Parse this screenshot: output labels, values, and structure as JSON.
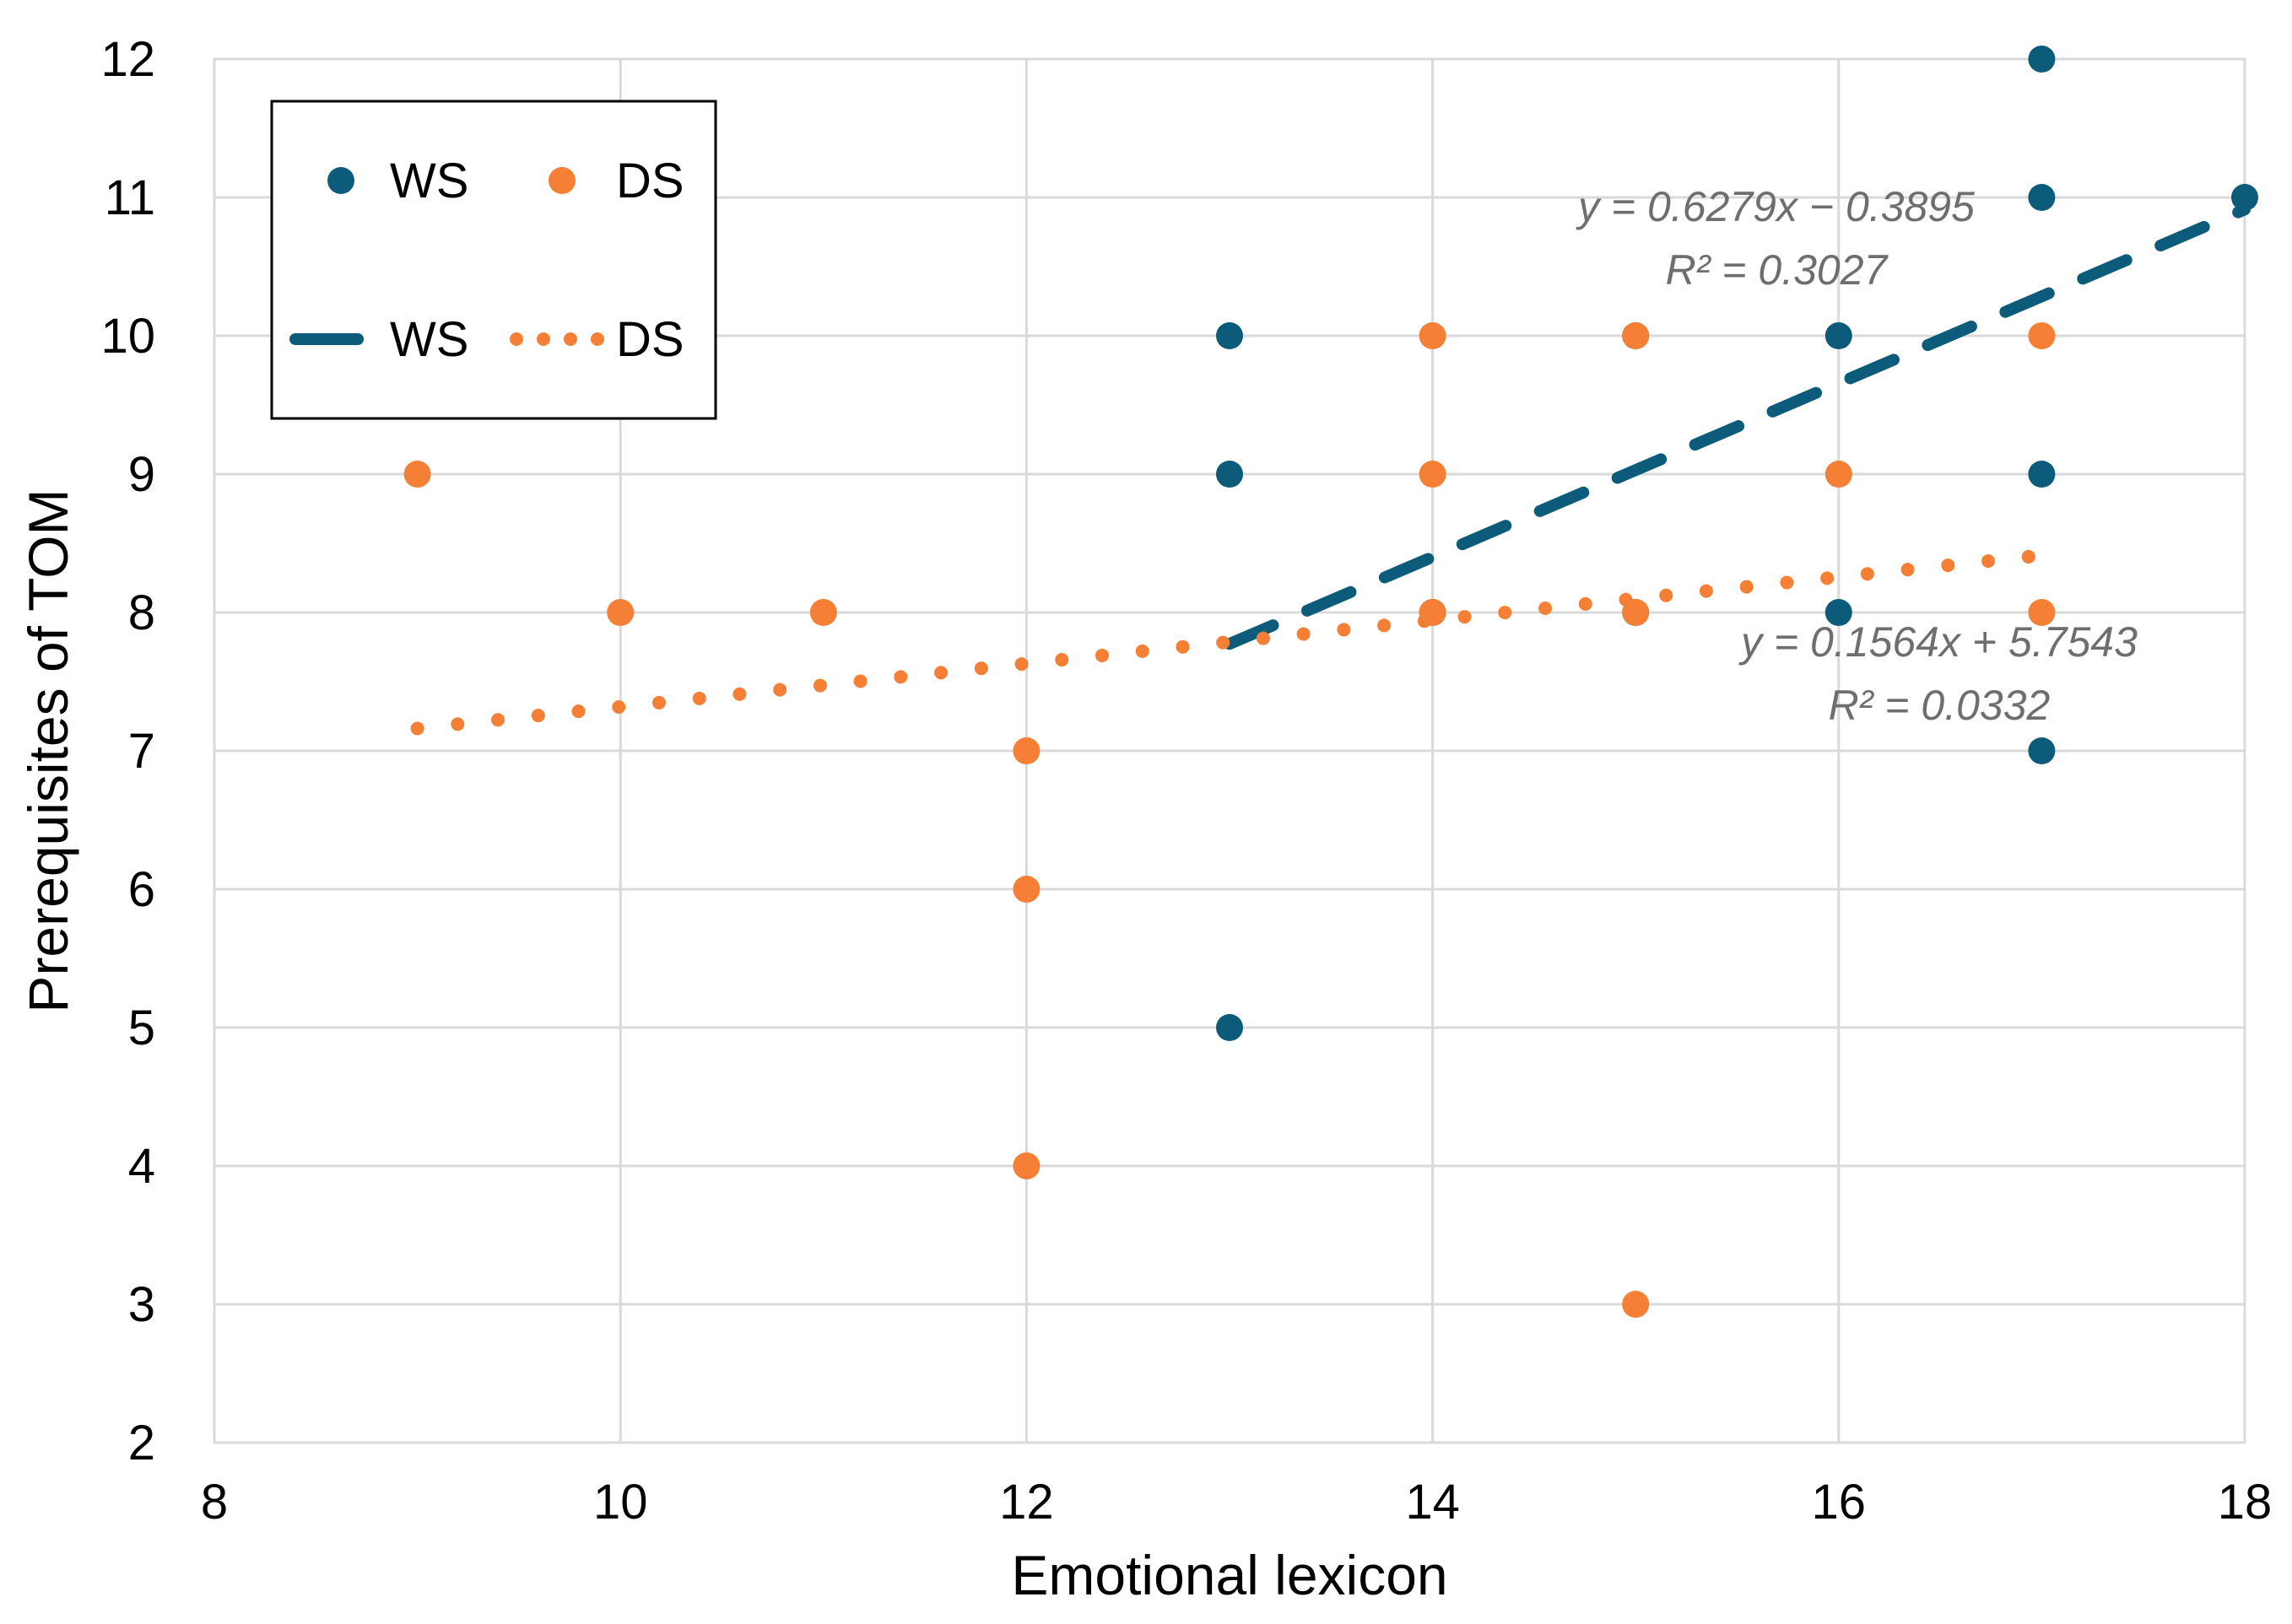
{
  "chart_data": {
    "type": "scatter",
    "title": "",
    "xlabel": "Emotional lexicon",
    "ylabel": "Prerequisites of TOM",
    "xlim": [
      8,
      18
    ],
    "ylim": [
      2,
      12
    ],
    "x_ticks": [
      "8",
      "10",
      "12",
      "14",
      "16",
      "18"
    ],
    "y_ticks": [
      "2",
      "3",
      "4",
      "5",
      "6",
      "7",
      "8",
      "9",
      "10",
      "11",
      "12"
    ],
    "grid": true,
    "colors": {
      "WS": "#0d5b7a",
      "DS": "#f47f35"
    },
    "series": [
      {
        "name": "WS",
        "points": [
          [
            13,
            10
          ],
          [
            13,
            9
          ],
          [
            13,
            5
          ],
          [
            14,
            8
          ],
          [
            15,
            10
          ],
          [
            15,
            8
          ],
          [
            16,
            10
          ],
          [
            16,
            8
          ],
          [
            17,
            12
          ],
          [
            17,
            11
          ],
          [
            17,
            9
          ],
          [
            17,
            7
          ],
          [
            18,
            11
          ]
        ]
      },
      {
        "name": "DS",
        "points": [
          [
            9,
            9
          ],
          [
            10,
            8
          ],
          [
            11,
            8
          ],
          [
            12,
            7
          ],
          [
            12,
            6
          ],
          [
            12,
            4
          ],
          [
            14,
            10
          ],
          [
            14,
            9
          ],
          [
            14,
            8
          ],
          [
            15,
            10
          ],
          [
            15,
            8
          ],
          [
            15,
            3
          ],
          [
            16,
            9
          ],
          [
            17,
            10
          ],
          [
            17,
            8
          ]
        ]
      }
    ],
    "trendlines": [
      {
        "name": "WS",
        "slope": 0.6279,
        "intercept": -0.3895,
        "x_range": [
          13,
          18
        ],
        "style": "dashed",
        "equation": "y = 0.6279x − 0.3895",
        "r2": "R² = 0.3027"
      },
      {
        "name": "DS",
        "slope": 0.1564,
        "intercept": 5.7543,
        "x_range": [
          9,
          17
        ],
        "style": "dotted",
        "equation": "y = 0.1564x + 5.7543",
        "r2": "R² = 0.0332"
      }
    ],
    "legend": {
      "placement": "top-left",
      "marker_labels": [
        "WS",
        "DS"
      ],
      "line_labels": [
        "WS",
        "DS"
      ]
    }
  }
}
